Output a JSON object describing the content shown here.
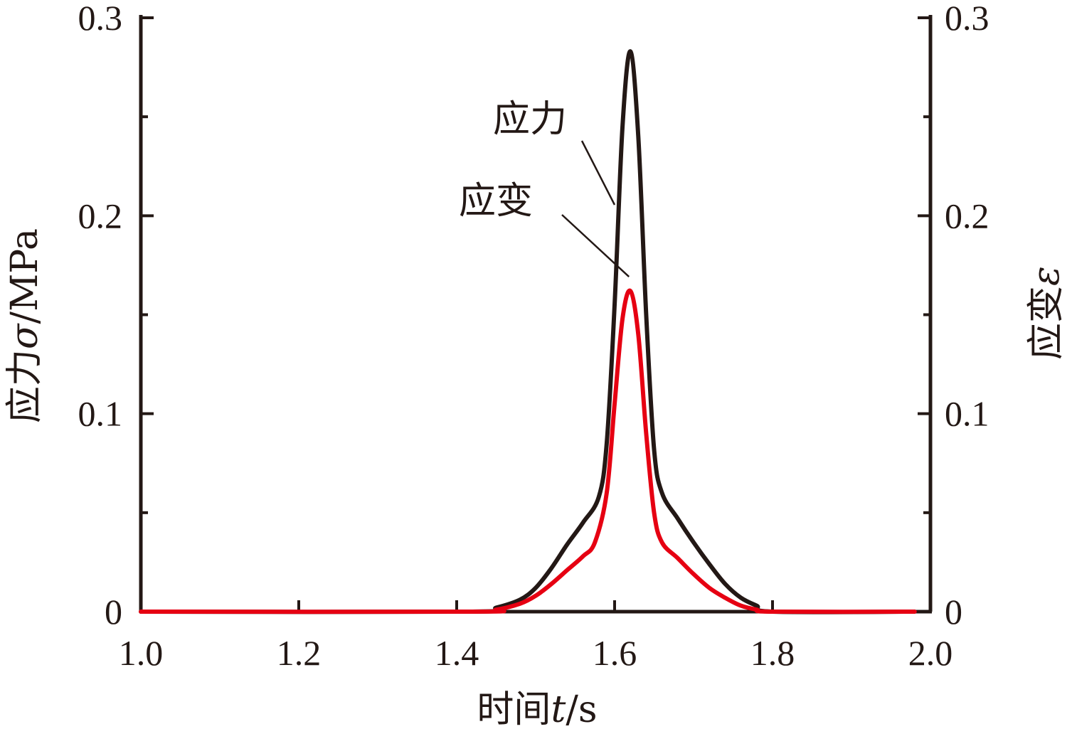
{
  "chart_data": {
    "type": "line",
    "x_axis": {
      "label": "时间",
      "label_var": "t",
      "label_unit": "/s",
      "range": [
        1.0,
        2.0
      ],
      "ticks": [
        1.0,
        1.2,
        1.4,
        1.6,
        1.8,
        2.0
      ],
      "tick_labels": [
        "1.0",
        "1.2",
        "1.4",
        "1.6",
        "1.8",
        "2.0"
      ]
    },
    "y_left": {
      "label": "应力",
      "label_var": "σ",
      "label_unit": "/MPa",
      "range": [
        0,
        0.3
      ],
      "ticks": [
        0,
        0.1,
        0.2,
        0.3
      ],
      "tick_labels": [
        "0",
        "0.1",
        "0.2",
        "0.3"
      ],
      "minor_ticks": [
        0.05,
        0.15,
        0.25
      ]
    },
    "y_right": {
      "label": "应变",
      "label_var": "ε",
      "range": [
        0,
        0.3
      ],
      "ticks": [
        0,
        0.1,
        0.2,
        0.3
      ],
      "tick_labels": [
        "0",
        "0.1",
        "0.2",
        "0.3"
      ],
      "minor_ticks": [
        0.05,
        0.15,
        0.25
      ]
    },
    "grid": false,
    "series": [
      {
        "name": "应力",
        "color": "#231815",
        "axis": "left",
        "x": [
          1.0,
          1.42,
          1.45,
          1.48,
          1.5,
          1.52,
          1.54,
          1.56,
          1.58,
          1.59,
          1.6,
          1.61,
          1.62,
          1.63,
          1.64,
          1.65,
          1.66,
          1.68,
          1.7,
          1.72,
          1.74,
          1.76,
          1.78,
          1.8,
          1.98
        ],
        "y": [
          0.0,
          0.0,
          0.002,
          0.006,
          0.012,
          0.022,
          0.034,
          0.045,
          0.058,
          0.085,
          0.155,
          0.245,
          0.283,
          0.24,
          0.15,
          0.082,
          0.06,
          0.047,
          0.035,
          0.024,
          0.014,
          0.007,
          0.003,
          0.0,
          0.0
        ]
      },
      {
        "name": "应变",
        "color": "#e60012",
        "axis": "right",
        "x": [
          1.0,
          1.42,
          1.45,
          1.48,
          1.5,
          1.52,
          1.54,
          1.56,
          1.575,
          1.59,
          1.6,
          1.61,
          1.62,
          1.63,
          1.64,
          1.65,
          1.66,
          1.68,
          1.7,
          1.72,
          1.74,
          1.76,
          1.78,
          1.8,
          1.98
        ],
        "y": [
          0.0,
          0.0,
          0.001,
          0.004,
          0.008,
          0.014,
          0.021,
          0.028,
          0.035,
          0.06,
          0.105,
          0.148,
          0.162,
          0.14,
          0.09,
          0.05,
          0.035,
          0.027,
          0.019,
          0.012,
          0.007,
          0.003,
          0.001,
          0.0,
          0.0
        ]
      }
    ],
    "annotations": [
      {
        "text": "应力"
      },
      {
        "text": "应变"
      }
    ]
  }
}
